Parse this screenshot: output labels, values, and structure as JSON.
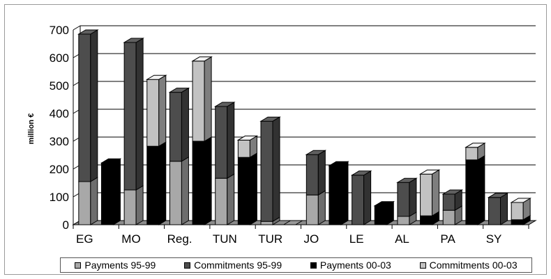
{
  "chart_data": {
    "type": "bar",
    "stacked": true,
    "style": "3d",
    "ylabel": "million €",
    "ylim": [
      0,
      700
    ],
    "yticks": [
      0,
      100,
      200,
      300,
      400,
      500,
      600,
      700
    ],
    "grid": true,
    "legend_position": "bottom",
    "x_labels": [
      "EG",
      "MO",
      "Reg.",
      "TUN",
      "TUR",
      "JO",
      "LE",
      "AL",
      "PA",
      "SY"
    ],
    "bars": [
      {
        "group": "EG",
        "period": "95-99",
        "segments": [
          {
            "series": "Payments 95-99",
            "value": 155
          },
          {
            "series": "Commitments 95-99",
            "value": 530
          }
        ]
      },
      {
        "group": "EG",
        "period": "00-03",
        "segments": [
          {
            "series": "Payments 00-03",
            "value": 222
          },
          {
            "series": "Commitments 00-03",
            "value": 0
          }
        ]
      },
      {
        "group": "MO",
        "period": "95-99",
        "segments": [
          {
            "series": "Payments 95-99",
            "value": 125
          },
          {
            "series": "Commitments 95-99",
            "value": 530
          }
        ]
      },
      {
        "group": "MO",
        "period": "00-03",
        "segments": [
          {
            "series": "Payments 00-03",
            "value": 282
          },
          {
            "series": "Commitments 00-03",
            "value": 240
          }
        ]
      },
      {
        "group": "Reg.",
        "period": "95-99",
        "segments": [
          {
            "series": "Payments 95-99",
            "value": 228
          },
          {
            "series": "Commitments 95-99",
            "value": 248
          }
        ]
      },
      {
        "group": "Reg.",
        "period": "00-03",
        "segments": [
          {
            "series": "Payments 00-03",
            "value": 300
          },
          {
            "series": "Commitments 00-03",
            "value": 288
          }
        ]
      },
      {
        "group": "TUN",
        "period": "95-99",
        "segments": [
          {
            "series": "Payments 95-99",
            "value": 167
          },
          {
            "series": "Commitments 95-99",
            "value": 258
          }
        ]
      },
      {
        "group": "TUN",
        "period": "00-03",
        "segments": [
          {
            "series": "Payments 00-03",
            "value": 242
          },
          {
            "series": "Commitments 00-03",
            "value": 62
          }
        ]
      },
      {
        "group": "TUR",
        "period": "95-99",
        "segments": [
          {
            "series": "Payments 95-99",
            "value": 12
          },
          {
            "series": "Commitments 95-99",
            "value": 360
          }
        ]
      },
      {
        "group": "TUR",
        "period": "00-03",
        "segments": [
          {
            "series": "Payments 00-03",
            "value": 0
          },
          {
            "series": "Commitments 00-03",
            "value": 0
          }
        ]
      },
      {
        "group": "JO",
        "period": "95-99",
        "segments": [
          {
            "series": "Payments 95-99",
            "value": 107
          },
          {
            "series": "Commitments 95-99",
            "value": 145
          }
        ]
      },
      {
        "group": "JO",
        "period": "00-03",
        "segments": [
          {
            "series": "Payments 00-03",
            "value": 212
          },
          {
            "series": "Commitments 00-03",
            "value": 0
          }
        ]
      },
      {
        "group": "LE",
        "period": "95-99",
        "segments": [
          {
            "series": "Payments 95-99",
            "value": 0
          },
          {
            "series": "Commitments 95-99",
            "value": 178
          }
        ]
      },
      {
        "group": "LE",
        "period": "00-03",
        "segments": [
          {
            "series": "Payments 00-03",
            "value": 68
          },
          {
            "series": "Commitments 00-03",
            "value": 0
          }
        ]
      },
      {
        "group": "AL",
        "period": "95-99",
        "segments": [
          {
            "series": "Payments 95-99",
            "value": 30
          },
          {
            "series": "Commitments 95-99",
            "value": 122
          }
        ]
      },
      {
        "group": "AL",
        "period": "00-03",
        "segments": [
          {
            "series": "Payments 00-03",
            "value": 32
          },
          {
            "series": "Commitments 00-03",
            "value": 150
          }
        ]
      },
      {
        "group": "PA",
        "period": "95-99",
        "segments": [
          {
            "series": "Payments 95-99",
            "value": 52
          },
          {
            "series": "Commitments 95-99",
            "value": 58
          }
        ]
      },
      {
        "group": "PA",
        "period": "00-03",
        "segments": [
          {
            "series": "Payments 00-03",
            "value": 233
          },
          {
            "series": "Commitments 00-03",
            "value": 45
          }
        ]
      },
      {
        "group": "SY",
        "period": "95-99",
        "segments": [
          {
            "series": "Payments 95-99",
            "value": 0
          },
          {
            "series": "Commitments 95-99",
            "value": 98
          }
        ]
      },
      {
        "group": "SY",
        "period": "00-03",
        "segments": [
          {
            "series": "Payments 00-03",
            "value": 18
          },
          {
            "series": "Commitments 00-03",
            "value": 62
          }
        ]
      }
    ],
    "series": [
      {
        "name": "Payments 95-99",
        "color": "#a8a8a8"
      },
      {
        "name": "Commitments 95-99",
        "color": "#4d4d4d"
      },
      {
        "name": "Payments 00-03",
        "color": "#000000"
      },
      {
        "name": "Commitments 00-03",
        "color": "#c2c2c2"
      }
    ]
  }
}
